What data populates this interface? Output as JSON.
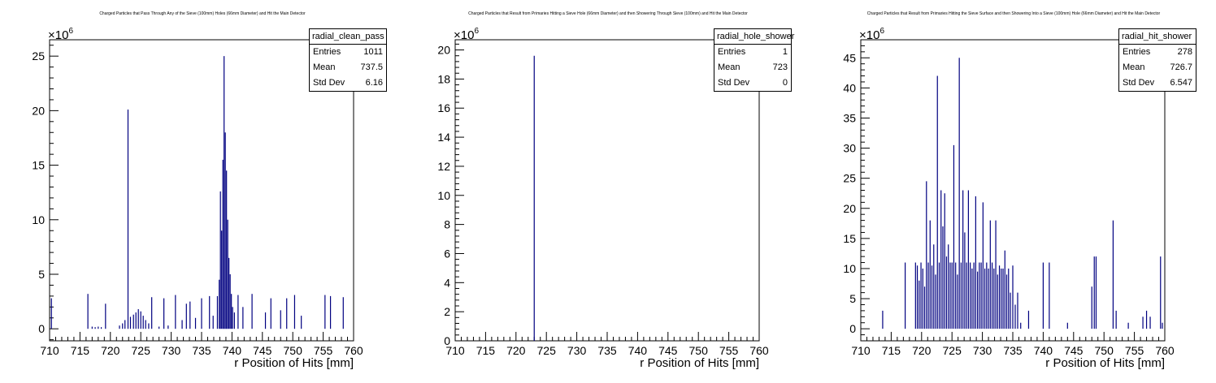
{
  "chart_data": [
    {
      "type": "histogram",
      "title": "Charged Particles that Pass Through Any of the Sieve (100mm) Holes (66mm Diameter) and Hit the Main Detector",
      "xlabel": "r Position of Hits [mm]",
      "ylabel": "",
      "y_exponent": "×10",
      "y_exponent_power": "6",
      "xlim": [
        710,
        760
      ],
      "ylim": [
        -1.1,
        26.5
      ],
      "xticks": [
        710,
        715,
        720,
        725,
        730,
        735,
        740,
        745,
        750,
        755,
        760
      ],
      "yticks": [
        0,
        5,
        10,
        15,
        20,
        25
      ],
      "stats": {
        "name": "radial_clean_pass",
        "rows": [
          {
            "label": "Entries",
            "value": "1011"
          },
          {
            "label": "Mean",
            "value": "737.5"
          },
          {
            "label": "Std Dev",
            "value": "6.16"
          }
        ]
      },
      "bins": [
        {
          "x": 710.3,
          "y": 2.8
        },
        {
          "x": 716.3,
          "y": 3.2
        },
        {
          "x": 717.0,
          "y": 0.2
        },
        {
          "x": 717.5,
          "y": 0.15
        },
        {
          "x": 718.0,
          "y": 0.2
        },
        {
          "x": 718.5,
          "y": 0.15
        },
        {
          "x": 719.2,
          "y": 2.3
        },
        {
          "x": 721.5,
          "y": 0.3
        },
        {
          "x": 722.0,
          "y": 0.5
        },
        {
          "x": 722.4,
          "y": 0.8
        },
        {
          "x": 722.9,
          "y": 20.1
        },
        {
          "x": 723.3,
          "y": 1.1
        },
        {
          "x": 723.8,
          "y": 1.3
        },
        {
          "x": 724.2,
          "y": 1.5
        },
        {
          "x": 724.6,
          "y": 1.8
        },
        {
          "x": 725.0,
          "y": 1.6
        },
        {
          "x": 725.4,
          "y": 1.2
        },
        {
          "x": 725.8,
          "y": 0.8
        },
        {
          "x": 726.3,
          "y": 0.5
        },
        {
          "x": 726.8,
          "y": 2.9
        },
        {
          "x": 728.0,
          "y": 0.2
        },
        {
          "x": 728.8,
          "y": 2.8
        },
        {
          "x": 729.5,
          "y": 0.3
        },
        {
          "x": 730.7,
          "y": 3.1
        },
        {
          "x": 731.8,
          "y": 0.8
        },
        {
          "x": 732.5,
          "y": 2.3
        },
        {
          "x": 733.1,
          "y": 2.5
        },
        {
          "x": 734.0,
          "y": 1.0
        },
        {
          "x": 735.0,
          "y": 2.8
        },
        {
          "x": 736.3,
          "y": 3.0
        },
        {
          "x": 736.9,
          "y": 1.2
        },
        {
          "x": 737.6,
          "y": 3.0
        },
        {
          "x": 737.9,
          "y": 4.5
        },
        {
          "x": 738.1,
          "y": 12.6
        },
        {
          "x": 738.3,
          "y": 9.0
        },
        {
          "x": 738.5,
          "y": 15.5
        },
        {
          "x": 738.7,
          "y": 25.0
        },
        {
          "x": 738.9,
          "y": 18.0
        },
        {
          "x": 739.1,
          "y": 14.5
        },
        {
          "x": 739.3,
          "y": 10.0
        },
        {
          "x": 739.5,
          "y": 6.5
        },
        {
          "x": 739.7,
          "y": 5.0
        },
        {
          "x": 739.9,
          "y": 3.2
        },
        {
          "x": 740.1,
          "y": 2.0
        },
        {
          "x": 740.4,
          "y": 1.5
        },
        {
          "x": 741.0,
          "y": 3.1
        },
        {
          "x": 741.8,
          "y": 2.0
        },
        {
          "x": 743.3,
          "y": 3.2
        },
        {
          "x": 745.5,
          "y": 1.5
        },
        {
          "x": 746.4,
          "y": 2.8
        },
        {
          "x": 748.0,
          "y": 1.7
        },
        {
          "x": 749.0,
          "y": 2.8
        },
        {
          "x": 750.3,
          "y": 3.1
        },
        {
          "x": 751.4,
          "y": 1.2
        },
        {
          "x": 755.3,
          "y": 3.1
        },
        {
          "x": 756.2,
          "y": 3.0
        },
        {
          "x": 758.3,
          "y": 2.9
        }
      ]
    },
    {
      "type": "histogram",
      "title": "Charged Particles that Result from Primaries Hitting a Sieve Hole (66mm Diameter) and then Showering Through Sieve (100mm) and Hit the Main Detector",
      "xlabel": "r Position of Hits [mm]",
      "ylabel": "",
      "y_exponent": "×10",
      "y_exponent_power": "6",
      "xlim": [
        710,
        760
      ],
      "ylim": [
        0,
        20.7
      ],
      "xticks": [
        710,
        715,
        720,
        725,
        730,
        735,
        740,
        745,
        750,
        755,
        760
      ],
      "yticks": [
        0,
        2,
        4,
        6,
        8,
        10,
        12,
        14,
        16,
        18,
        20
      ],
      "stats": {
        "name": "radial_hole_shower",
        "rows": [
          {
            "label": "Entries",
            "value": "1"
          },
          {
            "label": "Mean",
            "value": "723"
          },
          {
            "label": "Std Dev",
            "value": "0"
          }
        ]
      },
      "bins": [
        {
          "x": 723.0,
          "y": 19.6
        }
      ]
    },
    {
      "type": "histogram",
      "title": "Charged Particles that Result from Primaries Hitting the Sieve Surface and then Showering Into a Sieve (100mm) Hole (66mm Diameter) and Hit the Main Detector",
      "xlabel": "r Position of Hits [mm]",
      "ylabel": "",
      "y_exponent": "×10",
      "y_exponent_power": "6",
      "xlim": [
        710,
        760
      ],
      "ylim": [
        -2.0,
        48.0
      ],
      "xticks": [
        710,
        715,
        720,
        725,
        730,
        735,
        740,
        745,
        750,
        755,
        760
      ],
      "yticks": [
        0,
        5,
        10,
        15,
        20,
        25,
        30,
        35,
        40,
        45
      ],
      "stats": {
        "name": "radial_hit_shower",
        "rows": [
          {
            "label": "Entries",
            "value": "278"
          },
          {
            "label": "Mean",
            "value": "726.7"
          },
          {
            "label": "Std Dev",
            "value": "6.547"
          }
        ]
      },
      "bins": [
        {
          "x": 713.6,
          "y": 3.0
        },
        {
          "x": 717.3,
          "y": 11.0
        },
        {
          "x": 719.0,
          "y": 11.0
        },
        {
          "x": 719.3,
          "y": 10.5
        },
        {
          "x": 719.6,
          "y": 8.0
        },
        {
          "x": 719.9,
          "y": 11.0
        },
        {
          "x": 720.2,
          "y": 10.0
        },
        {
          "x": 720.5,
          "y": 7.0
        },
        {
          "x": 720.8,
          "y": 24.5
        },
        {
          "x": 721.1,
          "y": 11.0
        },
        {
          "x": 721.4,
          "y": 18.0
        },
        {
          "x": 721.7,
          "y": 10.5
        },
        {
          "x": 722.0,
          "y": 14.0
        },
        {
          "x": 722.3,
          "y": 9.0
        },
        {
          "x": 722.6,
          "y": 42.0
        },
        {
          "x": 722.9,
          "y": 11.0
        },
        {
          "x": 723.2,
          "y": 23.0
        },
        {
          "x": 723.5,
          "y": 17.0
        },
        {
          "x": 723.8,
          "y": 22.5
        },
        {
          "x": 724.1,
          "y": 12.0
        },
        {
          "x": 724.4,
          "y": 14.0
        },
        {
          "x": 724.7,
          "y": 11.0
        },
        {
          "x": 725.0,
          "y": 11.0
        },
        {
          "x": 725.3,
          "y": 30.5
        },
        {
          "x": 725.6,
          "y": 11.0
        },
        {
          "x": 725.9,
          "y": 9.0
        },
        {
          "x": 726.2,
          "y": 45.0
        },
        {
          "x": 726.5,
          "y": 11.0
        },
        {
          "x": 726.8,
          "y": 23.0
        },
        {
          "x": 727.1,
          "y": 16.0
        },
        {
          "x": 727.4,
          "y": 11.0
        },
        {
          "x": 727.7,
          "y": 23.0
        },
        {
          "x": 728.0,
          "y": 11.0
        },
        {
          "x": 728.3,
          "y": 10.0
        },
        {
          "x": 728.6,
          "y": 11.0
        },
        {
          "x": 728.9,
          "y": 22.0
        },
        {
          "x": 729.2,
          "y": 9.5
        },
        {
          "x": 729.5,
          "y": 11.0
        },
        {
          "x": 729.8,
          "y": 11.0
        },
        {
          "x": 730.1,
          "y": 21.0
        },
        {
          "x": 730.4,
          "y": 10.0
        },
        {
          "x": 730.7,
          "y": 11.0
        },
        {
          "x": 731.0,
          "y": 10.0
        },
        {
          "x": 731.3,
          "y": 18.0
        },
        {
          "x": 731.6,
          "y": 11.0
        },
        {
          "x": 731.9,
          "y": 10.0
        },
        {
          "x": 732.2,
          "y": 18.0
        },
        {
          "x": 732.5,
          "y": 9.0
        },
        {
          "x": 732.8,
          "y": 10.5
        },
        {
          "x": 733.1,
          "y": 10.0
        },
        {
          "x": 733.4,
          "y": 10.0
        },
        {
          "x": 733.7,
          "y": 13.0
        },
        {
          "x": 734.0,
          "y": 9.0
        },
        {
          "x": 734.3,
          "y": 10.0
        },
        {
          "x": 734.6,
          "y": 6.0
        },
        {
          "x": 735.0,
          "y": 10.5
        },
        {
          "x": 735.4,
          "y": 4.0
        },
        {
          "x": 735.8,
          "y": 6.0
        },
        {
          "x": 736.3,
          "y": 1.0
        },
        {
          "x": 737.6,
          "y": 3.0
        },
        {
          "x": 740.0,
          "y": 11.0
        },
        {
          "x": 741.0,
          "y": 11.0
        },
        {
          "x": 744.0,
          "y": 1.0
        },
        {
          "x": 748.0,
          "y": 7.0
        },
        {
          "x": 748.4,
          "y": 12.0
        },
        {
          "x": 748.7,
          "y": 12.0
        },
        {
          "x": 751.5,
          "y": 18.0
        },
        {
          "x": 752.0,
          "y": 3.0
        },
        {
          "x": 754.0,
          "y": 1.0
        },
        {
          "x": 756.4,
          "y": 2.0
        },
        {
          "x": 757.0,
          "y": 3.0
        },
        {
          "x": 757.6,
          "y": 2.0
        },
        {
          "x": 759.3,
          "y": 12.0
        },
        {
          "x": 759.6,
          "y": 1.0
        }
      ]
    }
  ]
}
